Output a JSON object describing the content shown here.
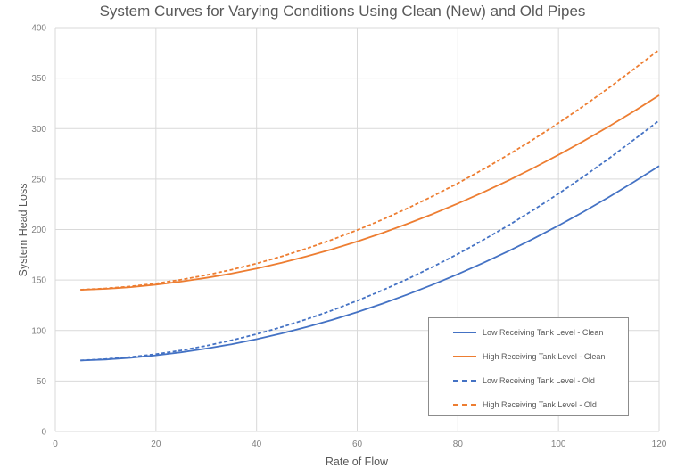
{
  "chart_data": {
    "type": "line",
    "title": "System Curves for Varying Conditions Using Clean (New) and Old Pipes",
    "xlabel": "Rate of Flow",
    "ylabel": "System Head Loss",
    "xlim": [
      0,
      120
    ],
    "ylim": [
      0,
      400
    ],
    "xticks": [
      0,
      20,
      40,
      60,
      80,
      100,
      120
    ],
    "yticks": [
      0,
      50,
      100,
      150,
      200,
      250,
      300,
      350,
      400
    ],
    "grid": true,
    "legend_position": "inside lower right",
    "x": [
      5,
      10,
      15,
      20,
      25,
      30,
      35,
      40,
      45,
      50,
      55,
      60,
      65,
      70,
      75,
      80,
      85,
      90,
      95,
      100,
      105,
      110,
      115,
      120
    ],
    "series": [
      {
        "name": "Low Receiving Tank Level - Clean",
        "color": "#4472c4",
        "dash": "solid",
        "values": [
          70.3,
          71.3,
          73.0,
          75.4,
          78.4,
          82.1,
          86.4,
          91.4,
          97.1,
          103.5,
          110.5,
          118.2,
          126.6,
          135.7,
          145.4,
          155.8,
          166.8,
          178.5,
          190.9,
          204.0,
          217.7,
          232.1,
          247.2,
          263.0
        ]
      },
      {
        "name": "High Receiving Tank Level - Clean",
        "color": "#ed7d31",
        "dash": "solid",
        "values": [
          140.3,
          141.3,
          143.0,
          145.4,
          148.4,
          152.1,
          156.4,
          161.4,
          167.1,
          173.5,
          180.5,
          188.2,
          196.6,
          205.7,
          215.4,
          225.8,
          236.8,
          248.5,
          260.9,
          274.0,
          287.7,
          302.1,
          317.2,
          333.0
        ]
      },
      {
        "name": "Low Receiving Tank Level - Old",
        "color": "#4472c4",
        "dash": "dashed",
        "values": [
          70.4,
          71.7,
          73.7,
          76.6,
          80.3,
          84.9,
          90.2,
          96.4,
          103.4,
          111.3,
          119.9,
          129.5,
          139.8,
          151.0,
          163.0,
          175.8,
          189.5,
          204.0,
          219.3,
          235.5,
          252.5,
          270.3,
          289.0,
          308.0
        ]
      },
      {
        "name": "High Receiving Tank Level - Old",
        "color": "#ed7d31",
        "dash": "dashed",
        "values": [
          140.4,
          141.7,
          143.7,
          146.6,
          150.3,
          154.9,
          160.2,
          166.4,
          173.4,
          181.3,
          189.9,
          199.5,
          209.8,
          221.0,
          233.0,
          245.8,
          259.5,
          274.0,
          289.3,
          305.5,
          322.5,
          340.3,
          359.0,
          378.0
        ]
      }
    ]
  },
  "colors": {
    "gridline": "#d9d9d9",
    "text": "#595959",
    "tick_text": "#808080"
  }
}
